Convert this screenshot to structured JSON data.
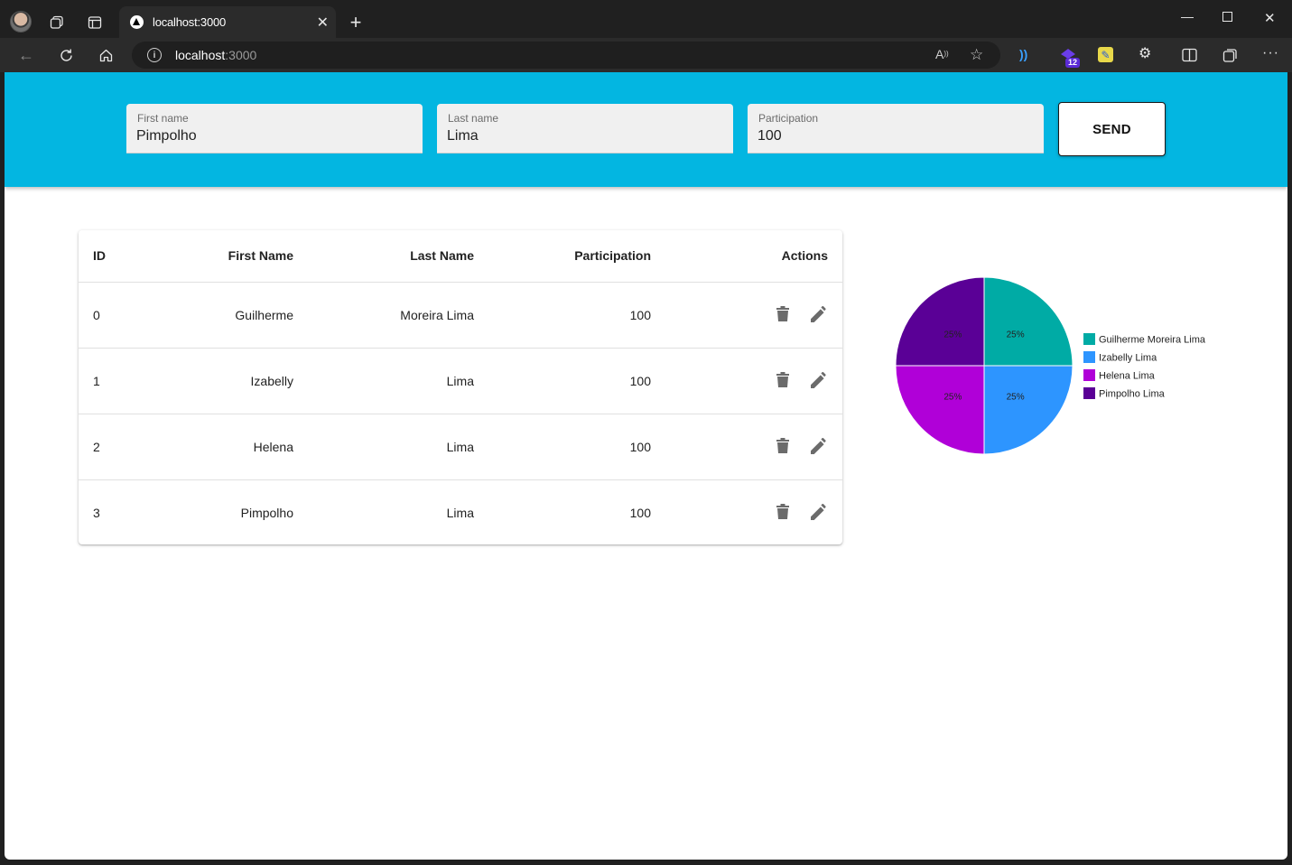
{
  "browser": {
    "tab_title": "localhost:3000",
    "url_host": "localhost",
    "url_port": ":3000",
    "extension_badge": "12"
  },
  "form": {
    "first_name": {
      "label": "First name",
      "value": "Pimpolho"
    },
    "last_name": {
      "label": "Last name",
      "value": "Lima"
    },
    "participation": {
      "label": "Participation",
      "value": "100"
    },
    "send_label": "SEND"
  },
  "table": {
    "headers": {
      "id": "ID",
      "first": "First Name",
      "last": "Last Name",
      "participation": "Participation",
      "actions": "Actions"
    },
    "rows": [
      {
        "id": "0",
        "first": "Guilherme",
        "last": "Moreira Lima",
        "participation": "100"
      },
      {
        "id": "1",
        "first": "Izabelly",
        "last": "Lima",
        "participation": "100"
      },
      {
        "id": "2",
        "first": "Helena",
        "last": "Lima",
        "participation": "100"
      },
      {
        "id": "3",
        "first": "Pimpolho",
        "last": "Lima",
        "participation": "100"
      }
    ]
  },
  "colors": {
    "header_bg": "#03b6e1",
    "icon_gray": "#6b6b6b"
  },
  "chart_data": {
    "type": "pie",
    "categories": [
      "Guilherme Moreira Lima",
      "Izabelly Lima",
      "Helena Lima",
      "Pimpolho Lima"
    ],
    "values": [
      25,
      25,
      25,
      25
    ],
    "labels": [
      "25%",
      "25%",
      "25%",
      "25%"
    ],
    "colors": [
      "#00aba5",
      "#2d95ff",
      "#b000d8",
      "#5a0096"
    ],
    "legend_placement": "right"
  }
}
